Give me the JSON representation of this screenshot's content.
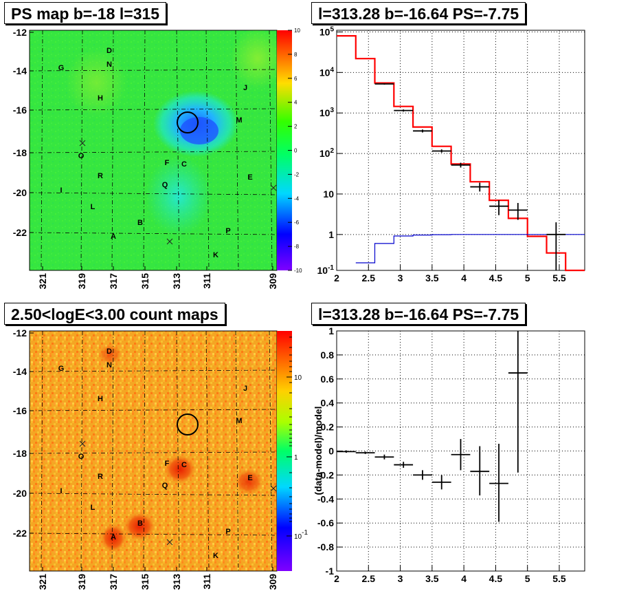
{
  "chart_data": [
    {
      "type": "heatmap",
      "title": "PS map b=-18 l=315",
      "xticks": [
        "321",
        "319",
        "317",
        "315",
        "313",
        "311",
        "309"
      ],
      "yticks": [
        "-12",
        "-14",
        "-16",
        "-18",
        "-20",
        "-22"
      ],
      "colorbar": {
        "scale": "linear",
        "range": [
          -10,
          10
        ],
        "ticks": [
          "10",
          "8",
          "6",
          "4",
          "2",
          "0",
          "-2",
          "-4",
          "-6",
          "-8",
          "-10"
        ]
      },
      "source_labels": [
        "D",
        "N",
        "G",
        "H",
        "J",
        "M",
        "O",
        "F",
        "C",
        "R",
        "Q",
        "E",
        "I",
        "L",
        "B",
        "P",
        "A",
        "K"
      ]
    },
    {
      "type": "line",
      "title": "l=313.28 b=-16.64 PS=-7.75",
      "xticks": [
        "2",
        "2.5",
        "3",
        "3.5",
        "4",
        "4.5",
        "5",
        "5.5"
      ],
      "yticks": [
        "10^5",
        "10^4",
        "10^3",
        "10^2",
        "10",
        "1",
        "10^-1"
      ],
      "xlim": [
        2,
        5.9
      ],
      "ylog": true,
      "ylim": [
        0.13,
        110000
      ],
      "grid": true,
      "series": [
        {
          "color": "#ff0000",
          "style": "step",
          "edges": [
            2.0,
            2.3,
            2.6,
            2.9,
            3.2,
            3.5,
            3.8,
            4.1,
            4.4,
            4.7,
            5.0,
            5.3,
            5.6,
            5.9
          ],
          "values": [
            80000,
            22000,
            5500,
            1450,
            450,
            150,
            55,
            20,
            7,
            2.5,
            0.9,
            0.35,
            0.13
          ]
        },
        {
          "color": "#0000cc",
          "style": "step",
          "edges": [
            2.3,
            2.6,
            2.9,
            3.2,
            3.5,
            3.8,
            4.1,
            4.4,
            4.7,
            5.0,
            5.3,
            5.6,
            5.9
          ],
          "values": [
            0.2,
            0.6,
            0.92,
            0.97,
            0.99,
            1.0,
            1.0,
            1.0,
            1.0,
            1.0,
            1.0,
            1.0
          ]
        },
        {
          "color": "#000000",
          "style": "errorbar",
          "points": [
            {
              "x": 2.75,
              "xerr": 0.15,
              "y": 5200,
              "ylo": 5000,
              "yhi": 5400
            },
            {
              "x": 3.05,
              "xerr": 0.15,
              "y": 1150,
              "ylo": 1080,
              "yhi": 1220
            },
            {
              "x": 3.35,
              "xerr": 0.15,
              "y": 360,
              "ylo": 330,
              "yhi": 390
            },
            {
              "x": 3.65,
              "xerr": 0.15,
              "y": 115,
              "ylo": 105,
              "yhi": 126
            },
            {
              "x": 3.95,
              "xerr": 0.15,
              "y": 52,
              "ylo": 45,
              "yhi": 59
            },
            {
              "x": 4.25,
              "xerr": 0.15,
              "y": 15,
              "ylo": 11.5,
              "yhi": 19
            },
            {
              "x": 4.55,
              "xerr": 0.15,
              "y": 5,
              "ylo": 3,
              "yhi": 7
            },
            {
              "x": 4.85,
              "xerr": 0.15,
              "y": 4,
              "ylo": 2.3,
              "yhi": 6
            },
            {
              "x": 5.45,
              "xerr": 0.15,
              "y": 1,
              "ylo": 0.13,
              "yhi": 2
            }
          ]
        }
      ]
    },
    {
      "type": "heatmap",
      "title": "2.50<logE<3.00 count maps",
      "xticks": [
        "321",
        "319",
        "317",
        "315",
        "313",
        "311",
        "309"
      ],
      "yticks": [
        "-12",
        "-14",
        "-16",
        "-18",
        "-20",
        "-22"
      ],
      "colorbar": {
        "scale": "log",
        "ticks": [
          "10",
          "1",
          "10^-1"
        ]
      },
      "source_labels": [
        "D",
        "N",
        "G",
        "H",
        "J",
        "M",
        "O",
        "F",
        "C",
        "R",
        "Q",
        "E",
        "I",
        "L",
        "B",
        "P",
        "A",
        "K"
      ]
    },
    {
      "type": "scatter",
      "title": "l=313.28 b=-16.64 PS=-7.75",
      "ylabel": "(data-model)/model",
      "xticks": [
        "2",
        "2.5",
        "3",
        "3.5",
        "4",
        "4.5",
        "5",
        "5.5"
      ],
      "yticks": [
        "1",
        "0.8",
        "0.6",
        "0.4",
        "0.2",
        "0",
        "-0.2",
        "-0.4",
        "-0.6",
        "-0.8",
        "-1"
      ],
      "xlim": [
        2,
        5.9
      ],
      "ylim": [
        -1,
        1
      ],
      "grid": true,
      "points": [
        {
          "x": 2.15,
          "xerr": 0.15,
          "y": -0.005,
          "ylo": -0.015,
          "yhi": 0.005
        },
        {
          "x": 2.45,
          "xerr": 0.15,
          "y": -0.015,
          "ylo": -0.025,
          "yhi": -0.005
        },
        {
          "x": 2.75,
          "xerr": 0.15,
          "y": -0.05,
          "ylo": -0.07,
          "yhi": -0.03
        },
        {
          "x": 3.05,
          "xerr": 0.15,
          "y": -0.115,
          "ylo": -0.14,
          "yhi": -0.09
        },
        {
          "x": 3.35,
          "xerr": 0.15,
          "y": -0.2,
          "ylo": -0.24,
          "yhi": -0.16
        },
        {
          "x": 3.65,
          "xerr": 0.15,
          "y": -0.26,
          "ylo": -0.32,
          "yhi": -0.2
        },
        {
          "x": 3.95,
          "xerr": 0.15,
          "y": -0.03,
          "ylo": -0.16,
          "yhi": 0.1
        },
        {
          "x": 4.25,
          "xerr": 0.15,
          "y": -0.17,
          "ylo": -0.37,
          "yhi": 0.04
        },
        {
          "x": 4.55,
          "xerr": 0.15,
          "y": -0.27,
          "ylo": -0.59,
          "yhi": 0.06
        },
        {
          "x": 4.85,
          "xerr": 0.15,
          "y": 0.65,
          "ylo": -0.18,
          "yhi": 1.0
        }
      ]
    }
  ]
}
